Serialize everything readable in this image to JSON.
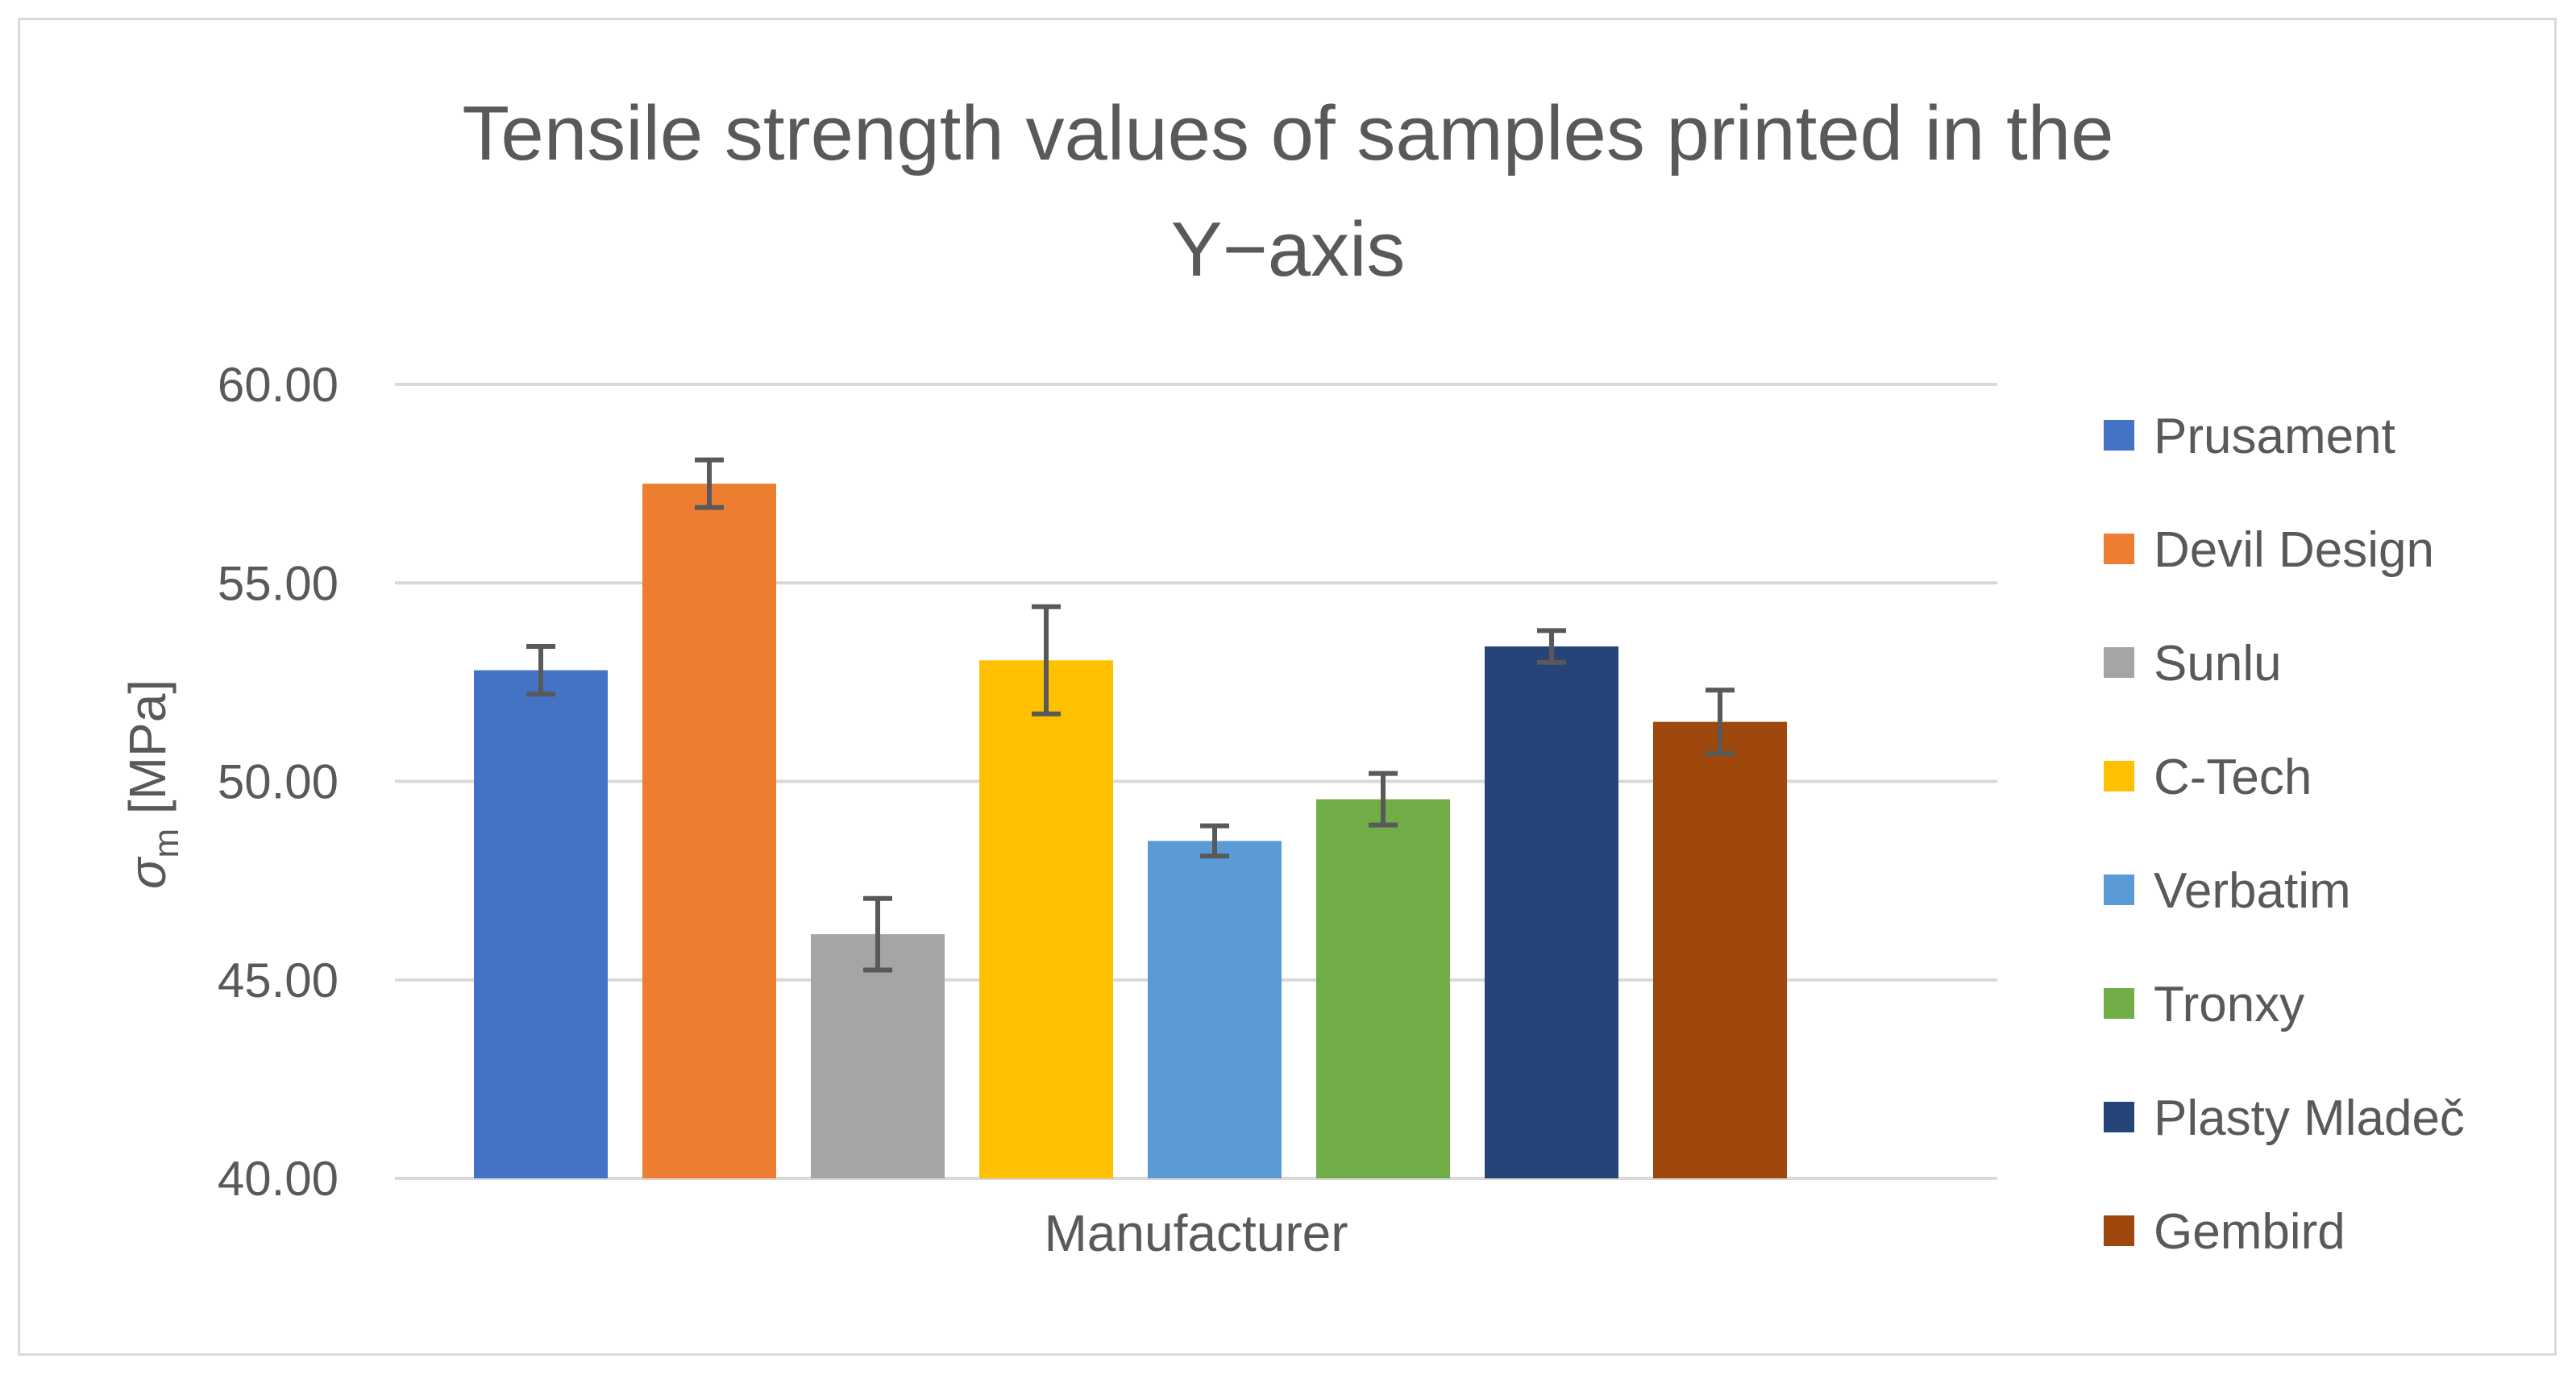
{
  "chart_data": {
    "type": "bar",
    "title_lines": [
      "Tensile strength values of samples printed in the",
      "Y−axis"
    ],
    "xlabel": "Manufacturer",
    "ylabel_symbol": "σ",
    "ylabel_subscript": "m",
    "ylabel_unit": " [MPa]",
    "ylim": [
      40,
      60
    ],
    "yticks": [
      40,
      45,
      50,
      55,
      60
    ],
    "ytick_labels": [
      "40.00",
      "45.00",
      "50.00",
      "55.00",
      "60.00"
    ],
    "grid": true,
    "legend_position": "right",
    "series": [
      {
        "name": "Prusament",
        "value": 52.8,
        "error": 0.6,
        "color": "#4472C4"
      },
      {
        "name": "Devil Design",
        "value": 57.5,
        "error": 0.6,
        "color": "#ED7D31"
      },
      {
        "name": "Sunlu",
        "value": 46.15,
        "error": 0.9,
        "color": "#A5A5A5"
      },
      {
        "name": "C-Tech",
        "value": 53.05,
        "error": 1.35,
        "color": "#FFC000"
      },
      {
        "name": "Verbatim",
        "value": 48.5,
        "error": 0.38,
        "color": "#5B9BD5"
      },
      {
        "name": "Tronxy",
        "value": 49.55,
        "error": 0.65,
        "color": "#70AD47"
      },
      {
        "name": "Plasty Mladeč",
        "value": 53.4,
        "error": 0.4,
        "color": "#264478"
      },
      {
        "name": "Gembird",
        "value": 51.5,
        "error": 0.8,
        "color": "#9E480E"
      }
    ]
  }
}
